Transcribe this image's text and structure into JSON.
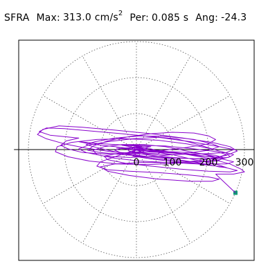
{
  "header": {
    "station": "SFRA",
    "max_label": "Max:",
    "max_value": "313.0",
    "max_unit": "cm/s",
    "max_unit_exp": "2",
    "per_label": "Per:",
    "per_value": "0.085 s",
    "ang_label": "Ang:",
    "ang_value": "-24.3"
  },
  "colors": {
    "trace": "#8800cc",
    "grid": "#555555",
    "axis": "#000000",
    "marker": "#119977",
    "frame": "#000000"
  },
  "chart_data": {
    "type": "scatter",
    "title": "",
    "xlabel": "",
    "ylabel": "",
    "polar_grid": true,
    "rings": [
      100,
      200,
      300
    ],
    "radial_spokes_deg": [
      0,
      30,
      60,
      90,
      120,
      150,
      180,
      210,
      240,
      270,
      300,
      330
    ],
    "axis_ticks": [
      "0",
      "100",
      "200",
      "300"
    ],
    "xlim": [
      -340,
      340
    ],
    "ylim": [
      -340,
      340
    ],
    "series": [
      {
        "points": [
          [
            0,
            0
          ],
          [
            12,
            8
          ],
          [
            -10,
            6
          ],
          [
            14,
            -6
          ],
          [
            -8,
            -10
          ],
          [
            6,
            12
          ],
          [
            -14,
            2
          ],
          [
            10,
            -4
          ],
          [
            0,
            0
          ],
          [
            40,
            8
          ],
          [
            -40,
            12
          ],
          [
            60,
            -6
          ],
          [
            -55,
            4
          ],
          [
            20,
            0
          ],
          [
            120,
            -10
          ],
          [
            180,
            -18
          ],
          [
            230,
            -20
          ],
          [
            250,
            -14
          ],
          [
            225,
            -6
          ],
          [
            160,
            2
          ],
          [
            80,
            10
          ],
          [
            0,
            12
          ],
          [
            -60,
            14
          ],
          [
            -120,
            18
          ],
          [
            -160,
            22
          ],
          [
            -130,
            16
          ],
          [
            -60,
            8
          ],
          [
            20,
            -2
          ],
          [
            100,
            -14
          ],
          [
            160,
            -28
          ],
          [
            220,
            -40
          ],
          [
            250,
            -50
          ],
          [
            230,
            -48
          ],
          [
            170,
            -36
          ],
          [
            100,
            -26
          ],
          [
            20,
            -18
          ],
          [
            -60,
            -6
          ],
          [
            -120,
            8
          ],
          [
            -140,
            14
          ],
          [
            -115,
            22
          ],
          [
            -60,
            32
          ],
          [
            10,
            38
          ],
          [
            90,
            36
          ],
          [
            160,
            28
          ],
          [
            210,
            16
          ],
          [
            230,
            8
          ],
          [
            200,
            -2
          ],
          [
            140,
            -10
          ],
          [
            60,
            -18
          ],
          [
            -20,
            -22
          ],
          [
            -90,
            -18
          ],
          [
            -140,
            -8
          ],
          [
            -160,
            2
          ],
          [
            -135,
            12
          ],
          [
            -80,
            22
          ],
          [
            -10,
            30
          ],
          [
            60,
            34
          ],
          [
            110,
            30
          ],
          [
            150,
            20
          ],
          [
            190,
            8
          ],
          [
            230,
            -4
          ],
          [
            270,
            -14
          ],
          [
            255,
            -22
          ],
          [
            200,
            -26
          ],
          [
            120,
            -24
          ],
          [
            40,
            -20
          ],
          [
            -40,
            -14
          ],
          [
            -100,
            -8
          ],
          [
            -135,
            -2
          ],
          [
            -120,
            10
          ],
          [
            -80,
            24
          ],
          [
            -20,
            36
          ],
          [
            40,
            44
          ],
          [
            100,
            48
          ],
          [
            160,
            46
          ],
          [
            200,
            38
          ],
          [
            220,
            28
          ],
          [
            200,
            16
          ],
          [
            140,
            6
          ],
          [
            60,
            -4
          ],
          [
            -20,
            -10
          ],
          [
            -90,
            -12
          ],
          [
            -150,
            -8
          ],
          [
            -190,
            2
          ],
          [
            -210,
            12
          ],
          [
            -195,
            24
          ],
          [
            -160,
            32
          ],
          [
            -240,
            40
          ],
          [
            -270,
            50
          ],
          [
            -250,
            60
          ],
          [
            -200,
            58
          ],
          [
            -130,
            52
          ],
          [
            -40,
            44
          ],
          [
            60,
            34
          ],
          [
            150,
            22
          ],
          [
            230,
            8
          ],
          [
            270,
            0
          ],
          [
            250,
            -8
          ],
          [
            180,
            -12
          ],
          [
            90,
            -14
          ],
          [
            10,
            -12
          ],
          [
            -70,
            -6
          ],
          [
            -140,
            4
          ],
          [
            -200,
            16
          ],
          [
            -250,
            30
          ],
          [
            -275,
            42
          ],
          [
            -260,
            56
          ],
          [
            -215,
            66
          ],
          [
            -150,
            62
          ],
          [
            -60,
            54
          ],
          [
            40,
            44
          ],
          [
            130,
            32
          ],
          [
            210,
            20
          ],
          [
            260,
            8
          ],
          [
            280,
            -4
          ],
          [
            250,
            -16
          ],
          [
            190,
            -28
          ],
          [
            110,
            -38
          ],
          [
            30,
            -42
          ],
          [
            -50,
            -40
          ],
          [
            -130,
            -32
          ],
          [
            -190,
            -20
          ],
          [
            -225,
            -6
          ],
          [
            -220,
            8
          ],
          [
            -180,
            20
          ],
          [
            -110,
            28
          ],
          [
            -30,
            30
          ],
          [
            60,
            26
          ],
          [
            140,
            16
          ],
          [
            210,
            2
          ],
          [
            250,
            -10
          ],
          [
            260,
            -20
          ],
          [
            230,
            -28
          ],
          [
            170,
            -34
          ],
          [
            90,
            -36
          ],
          [
            10,
            -32
          ],
          [
            -60,
            -24
          ],
          [
            -110,
            -14
          ],
          [
            -120,
            -2
          ],
          [
            -90,
            8
          ],
          [
            -40,
            14
          ],
          [
            20,
            14
          ],
          [
            80,
            8
          ],
          [
            140,
            -4
          ],
          [
            200,
            -16
          ],
          [
            240,
            -24
          ],
          [
            225,
            -32
          ],
          [
            180,
            -34
          ],
          [
            120,
            -32
          ],
          [
            60,
            -26
          ],
          [
            0,
            -18
          ],
          [
            -40,
            -10
          ],
          [
            -60,
            -2
          ],
          [
            -40,
            4
          ],
          [
            0,
            6
          ],
          [
            40,
            2
          ],
          [
            70,
            -6
          ],
          [
            60,
            -12
          ],
          [
            20,
            -10
          ],
          [
            -20,
            -4
          ],
          [
            -30,
            4
          ],
          [
            0,
            8
          ],
          [
            30,
            4
          ],
          [
            20,
            -4
          ],
          [
            0,
            0
          ],
          [
            -60,
            -20
          ],
          [
            -100,
            -34
          ],
          [
            -110,
            -46
          ],
          [
            -80,
            -56
          ],
          [
            -20,
            -60
          ],
          [
            60,
            -64
          ],
          [
            140,
            -70
          ],
          [
            200,
            -76
          ],
          [
            230,
            -82
          ],
          [
            210,
            -88
          ],
          [
            150,
            -88
          ],
          [
            60,
            -82
          ],
          [
            -20,
            -72
          ],
          [
            -80,
            -60
          ],
          [
            -100,
            -48
          ],
          [
            -60,
            -40
          ],
          [
            10,
            -36
          ],
          [
            90,
            -36
          ],
          [
            170,
            -40
          ],
          [
            240,
            -48
          ],
          [
            280,
            -58
          ],
          [
            260,
            -62
          ],
          [
            200,
            -60
          ],
          [
            120,
            -54
          ],
          [
            40,
            -46
          ],
          [
            -30,
            -38
          ],
          [
            -80,
            -28
          ],
          [
            -90,
            -18
          ],
          [
            -50,
            -10
          ],
          [
            10,
            -6
          ],
          [
            80,
            -8
          ],
          [
            160,
            -14
          ],
          [
            230,
            -24
          ],
          [
            270,
            -34
          ],
          [
            250,
            -40
          ],
          [
            190,
            -40
          ],
          [
            110,
            -34
          ],
          [
            40,
            -26
          ],
          [
            -10,
            -18
          ],
          [
            0,
            -10
          ],
          [
            40,
            -6
          ],
          [
            100,
            -6
          ],
          [
            170,
            -10
          ],
          [
            220,
            -16
          ],
          [
            240,
            -22
          ],
          [
            220,
            -26
          ],
          [
            170,
            -26
          ],
          [
            100,
            -22
          ],
          [
            40,
            -16
          ],
          [
            0,
            -10
          ],
          [
            -10,
            -4
          ],
          [
            10,
            0
          ],
          [
            60,
            -2
          ],
          [
            120,
            -10
          ],
          [
            200,
            -24
          ],
          [
            260,
            -40
          ],
          [
            290,
            -54
          ],
          [
            300,
            -62
          ],
          [
            270,
            -68
          ],
          [
            220,
            -68
          ]
        ]
      }
    ],
    "end_marker": [
      275,
      -120
    ]
  }
}
